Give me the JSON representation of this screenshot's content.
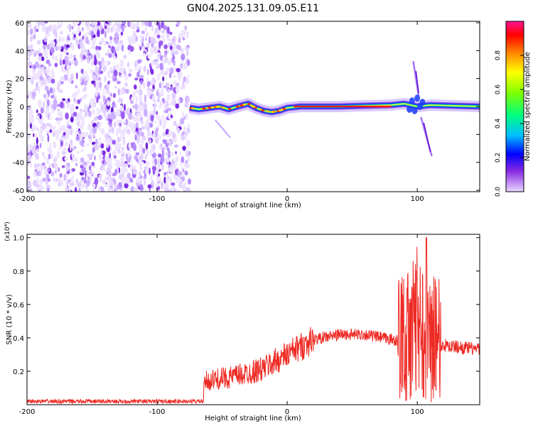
{
  "figure_title": "GN04.2025.131.09.05.E11",
  "chart_data": [
    {
      "type": "heatmap",
      "xlabel": "Height of straight line (km)",
      "ylabel": "Frequency (Hz)",
      "xlim": [
        -200,
        148
      ],
      "ylim": [
        -61,
        61
      ],
      "xticks": [
        -200,
        -100,
        0,
        100
      ],
      "yticks": [
        60,
        40,
        20,
        0,
        -20,
        -40,
        -60
      ],
      "colorbar": {
        "label": "Normalized spectral amplitude",
        "range": [
          0,
          1
        ],
        "ticks": [
          "0.0",
          "0.2",
          "0.4",
          "0.6",
          "0.8"
        ]
      },
      "noise_region_x": [
        -200,
        -75
      ],
      "signal_track": [
        {
          "x": -75,
          "f": -1
        },
        {
          "x": -68,
          "f": -2
        },
        {
          "x": -60,
          "f": -1
        },
        {
          "x": -52,
          "f": 0
        },
        {
          "x": -45,
          "f": -2
        },
        {
          "x": -38,
          "f": 0
        },
        {
          "x": -30,
          "f": 2
        },
        {
          "x": -24,
          "f": -1
        },
        {
          "x": -18,
          "f": -3
        },
        {
          "x": -12,
          "f": -4
        },
        {
          "x": -6,
          "f": -3
        },
        {
          "x": 0,
          "f": -1
        },
        {
          "x": 10,
          "f": 0
        },
        {
          "x": 40,
          "f": 0
        },
        {
          "x": 80,
          "f": 1
        },
        {
          "x": 90,
          "f": 2
        },
        {
          "x": 100,
          "f": 0
        },
        {
          "x": 110,
          "f": 1
        },
        {
          "x": 148,
          "f": 0
        }
      ]
    },
    {
      "type": "line",
      "xlabel": "Height of straight line (km)",
      "ylabel": "SNR (10 * v/v)",
      "scale_note": "(x10⁴)",
      "xlim": [
        -200,
        148
      ],
      "ylim": [
        0,
        1.02
      ],
      "xticks": [
        -200,
        -100,
        0,
        100
      ],
      "yticks": [
        "0.2",
        "0.4",
        "0.6",
        "0.8",
        "1.0"
      ],
      "envelope": [
        {
          "x": -200,
          "y": 0.02
        },
        {
          "x": -65,
          "y": 0.02
        },
        {
          "x": -63,
          "y": 0.14
        },
        {
          "x": -40,
          "y": 0.17
        },
        {
          "x": -20,
          "y": 0.21
        },
        {
          "x": 0,
          "y": 0.3
        },
        {
          "x": 20,
          "y": 0.39
        },
        {
          "x": 40,
          "y": 0.42
        },
        {
          "x": 60,
          "y": 0.42
        },
        {
          "x": 80,
          "y": 0.39
        },
        {
          "x": 90,
          "y": 0.38
        },
        {
          "x": 100,
          "y": 0.5
        },
        {
          "x": 115,
          "y": 0.36
        },
        {
          "x": 148,
          "y": 0.33
        }
      ],
      "peak": {
        "x": 107,
        "y": 1.0
      }
    }
  ]
}
